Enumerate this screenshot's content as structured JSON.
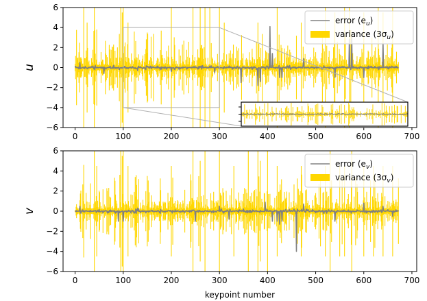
{
  "colors": {
    "error": "#808080",
    "variance": "#ffd700",
    "zoom_frame": "#b0b0b0"
  },
  "xlabel": "keypoint number",
  "chart_data": [
    {
      "type": "line",
      "panel": "top",
      "ylabel": "u",
      "xlim": [
        -25,
        710
      ],
      "ylim": [
        -6,
        6
      ],
      "xticks": [
        0,
        100,
        200,
        300,
        400,
        500,
        600,
        700
      ],
      "yticks": [
        -6,
        -4,
        -2,
        0,
        2,
        4,
        6
      ],
      "xtick_labels": [
        "0",
        "100",
        "200",
        "300",
        "400",
        "500",
        "600",
        "700"
      ],
      "ytick_labels": [
        "−6",
        "−4",
        "−2",
        "0",
        "2",
        "4",
        "6"
      ],
      "grid": false,
      "legend_position": "upper-right",
      "x_range": [
        0,
        672
      ],
      "series": [
        {
          "name": "error (e_u)",
          "label_main": "error (e",
          "label_sub": "u",
          "role": "error",
          "color": "#808080"
        },
        {
          "name": "variance (3σ_u)",
          "label_main": "variance (3σ",
          "label_sub": "u",
          "role": "variance",
          "color": "#ffd700"
        }
      ],
      "variance_spikes": [
        [
          18,
          6
        ],
        [
          25,
          4.5
        ],
        [
          40,
          6
        ],
        [
          45,
          3.8
        ],
        [
          95,
          6
        ],
        [
          98,
          5.5
        ],
        [
          100,
          6
        ],
        [
          110,
          4.5
        ],
        [
          150,
          3.5
        ],
        [
          200,
          6
        ],
        [
          245,
          6
        ],
        [
          260,
          6
        ],
        [
          270,
          6
        ],
        [
          280,
          6
        ],
        [
          300,
          6
        ],
        [
          310,
          4.5
        ],
        [
          380,
          4.5
        ],
        [
          420,
          6
        ],
        [
          470,
          4.5
        ],
        [
          520,
          6
        ],
        [
          540,
          5.5
        ],
        [
          560,
          6
        ],
        [
          570,
          6
        ],
        [
          600,
          5.5
        ],
        [
          630,
          6
        ],
        [
          640,
          5.5
        ],
        [
          660,
          6
        ]
      ],
      "error_spikes": [
        [
          10,
          0.5
        ],
        [
          60,
          -0.6
        ],
        [
          130,
          -0.3
        ],
        [
          200,
          -0.4
        ],
        [
          290,
          -0.5
        ],
        [
          345,
          -1.5
        ],
        [
          380,
          -1.8
        ],
        [
          385,
          -1.4
        ],
        [
          405,
          4.1
        ],
        [
          410,
          1.4
        ],
        [
          425,
          -1.0
        ],
        [
          430,
          -1.0
        ],
        [
          475,
          0.9
        ],
        [
          540,
          -1.0
        ],
        [
          570,
          2.8
        ],
        [
          575,
          3.0
        ],
        [
          600,
          -1.0
        ],
        [
          640,
          2.4
        ]
      ],
      "zoom_region": {
        "x": [
          100,
          300
        ],
        "y": [
          -4,
          4
        ]
      }
    },
    {
      "type": "line",
      "panel": "bottom",
      "ylabel": "v",
      "xlabel": "keypoint number",
      "xlim": [
        -25,
        710
      ],
      "ylim": [
        -6,
        6
      ],
      "xticks": [
        0,
        100,
        200,
        300,
        400,
        500,
        600,
        700
      ],
      "yticks": [
        -6,
        -4,
        -2,
        0,
        2,
        4,
        6
      ],
      "xtick_labels": [
        "0",
        "100",
        "200",
        "300",
        "400",
        "500",
        "600",
        "700"
      ],
      "ytick_labels": [
        "−6",
        "−4",
        "−2",
        "0",
        "2",
        "4",
        "6"
      ],
      "grid": false,
      "legend_position": "upper-right",
      "x_range": [
        0,
        672
      ],
      "series": [
        {
          "name": "error (e_v)",
          "label_main": "error (e",
          "label_sub": "v",
          "role": "error",
          "color": "#808080"
        },
        {
          "name": "variance (3σ_v)",
          "label_main": "variance (3σ",
          "label_sub": "v",
          "role": "variance",
          "color": "#ffd700"
        }
      ],
      "variance_spikes": [
        [
          18,
          4.6
        ],
        [
          40,
          6
        ],
        [
          45,
          4.5
        ],
        [
          95,
          6
        ],
        [
          98,
          5.5
        ],
        [
          100,
          6
        ],
        [
          110,
          4.5
        ],
        [
          150,
          3.5
        ],
        [
          200,
          4.5
        ],
        [
          245,
          6
        ],
        [
          260,
          5
        ],
        [
          270,
          6
        ],
        [
          300,
          6
        ],
        [
          330,
          4.5
        ],
        [
          360,
          6
        ],
        [
          380,
          6
        ],
        [
          385,
          5
        ],
        [
          400,
          6
        ],
        [
          420,
          4.5
        ],
        [
          470,
          4.5
        ],
        [
          510,
          3.5
        ],
        [
          520,
          4.5
        ],
        [
          530,
          6
        ],
        [
          550,
          4.5
        ],
        [
          560,
          4.5
        ],
        [
          575,
          6
        ],
        [
          600,
          4.5
        ],
        [
          620,
          4.5
        ],
        [
          640,
          4.5
        ],
        [
          660,
          4.5
        ]
      ],
      "error_spikes": [
        [
          10,
          0.5
        ],
        [
          90,
          -1.0
        ],
        [
          100,
          -1.0
        ],
        [
          130,
          0.3
        ],
        [
          250,
          -1.0
        ],
        [
          300,
          0.5
        ],
        [
          320,
          -0.8
        ],
        [
          395,
          0.9
        ],
        [
          410,
          -1.0
        ],
        [
          420,
          -1.0
        ],
        [
          425,
          -1.3
        ],
        [
          430,
          -1.0
        ],
        [
          460,
          -4.0
        ],
        [
          475,
          0.7
        ],
        [
          540,
          -1.0
        ],
        [
          600,
          0.8
        ],
        [
          640,
          0.5
        ],
        [
          660,
          -0.5
        ]
      ]
    }
  ]
}
